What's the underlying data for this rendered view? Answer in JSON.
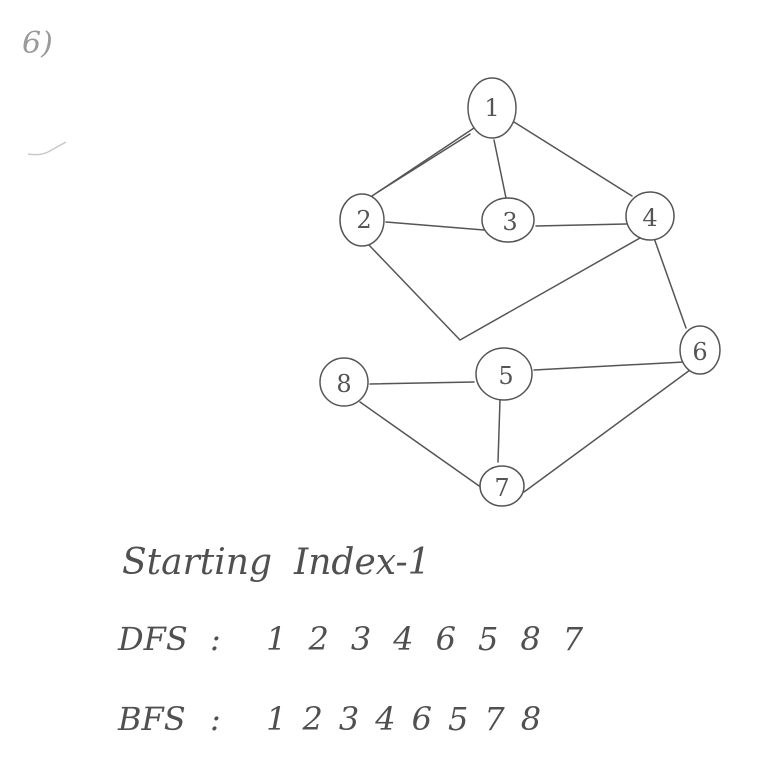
{
  "problem_number": "6)",
  "graph": {
    "nodes": [
      {
        "id": "1",
        "label": "1"
      },
      {
        "id": "2",
        "label": "2"
      },
      {
        "id": "3",
        "label": "3"
      },
      {
        "id": "4",
        "label": "4"
      },
      {
        "id": "5",
        "label": "5"
      },
      {
        "id": "6",
        "label": "6"
      },
      {
        "id": "7",
        "label": "7"
      },
      {
        "id": "8",
        "label": "8"
      }
    ],
    "edges": [
      [
        "1",
        "2"
      ],
      [
        "1",
        "3"
      ],
      [
        "1",
        "4"
      ],
      [
        "2",
        "3"
      ],
      [
        "3",
        "4"
      ],
      [
        "2",
        "4"
      ],
      [
        "4",
        "6"
      ],
      [
        "5",
        "6"
      ],
      [
        "5",
        "8"
      ],
      [
        "5",
        "7"
      ],
      [
        "8",
        "7"
      ],
      [
        "6",
        "7"
      ]
    ]
  },
  "starting_index": {
    "label": "Starting",
    "value": "Index-1"
  },
  "dfs": {
    "label": "DFS",
    "colon": ":",
    "sequence": [
      "1",
      "2",
      "3",
      "4",
      "6",
      "5",
      "8",
      "7"
    ]
  },
  "bfs": {
    "label": "BFS",
    "colon": ":",
    "sequence": [
      "1",
      "2",
      "3",
      "4",
      "6",
      "5",
      "7",
      "8"
    ]
  }
}
